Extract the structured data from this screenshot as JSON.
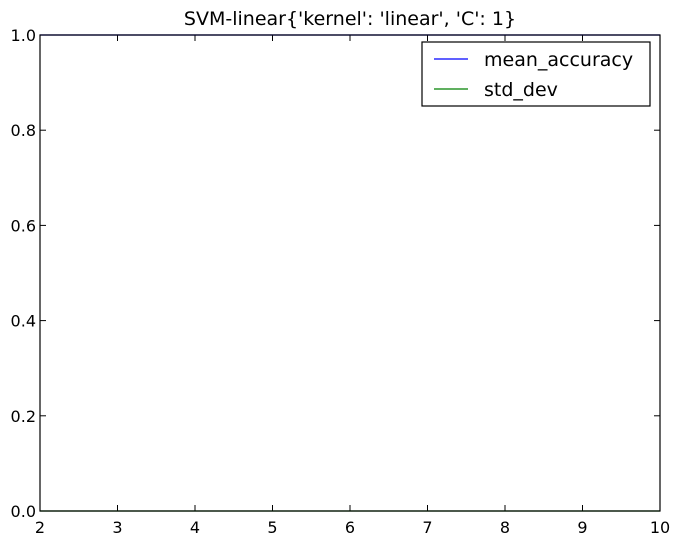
{
  "chart_data": {
    "type": "line",
    "title": "SVM-linear{'kernel': 'linear', 'C': 1}",
    "xlabel": "",
    "ylabel": "",
    "xlim": [
      2,
      10
    ],
    "ylim": [
      0.0,
      1.0
    ],
    "xticks": [
      2,
      3,
      4,
      5,
      6,
      7,
      8,
      9,
      10
    ],
    "yticks": [
      0.0,
      0.2,
      0.4,
      0.6,
      0.8,
      1.0
    ],
    "ytick_labels": [
      "0.0",
      "0.2",
      "0.4",
      "0.6",
      "0.8",
      "1.0"
    ],
    "grid": false,
    "legend_position": "top-right",
    "x": [
      2,
      3,
      4,
      5,
      6,
      7,
      8,
      9,
      10
    ],
    "series": [
      {
        "name": "mean_accuracy",
        "color": "#0000ff",
        "values": [
          1.0,
          1.0,
          1.0,
          1.0,
          1.0,
          1.0,
          1.0,
          1.0,
          1.0
        ]
      },
      {
        "name": "std_dev",
        "color": "#008000",
        "values": [
          0.0,
          0.0,
          0.0,
          0.0,
          0.0,
          0.0,
          0.0,
          0.0,
          0.0
        ]
      }
    ]
  }
}
